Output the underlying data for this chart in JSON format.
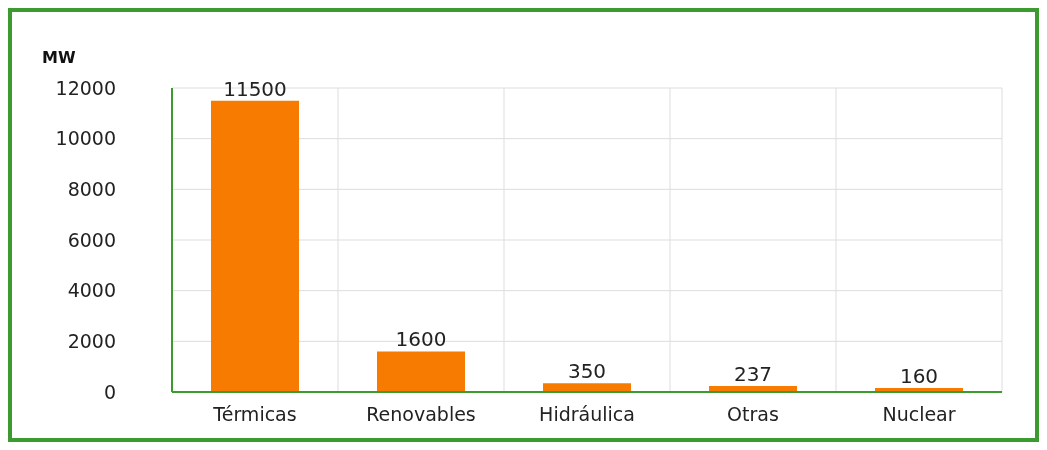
{
  "chart_data": {
    "type": "bar",
    "ylabel": "MW",
    "categories": [
      "Térmicas",
      "Renovables",
      "Hidráulica",
      "Otras",
      "Nuclear"
    ],
    "values": [
      11500,
      1600,
      350,
      237,
      160
    ],
    "color": "#f77b00",
    "ylim": [
      0,
      12000
    ],
    "yticks": [
      0,
      2000,
      4000,
      6000,
      8000,
      10000,
      12000
    ],
    "grid": true,
    "data_labels": true
  }
}
